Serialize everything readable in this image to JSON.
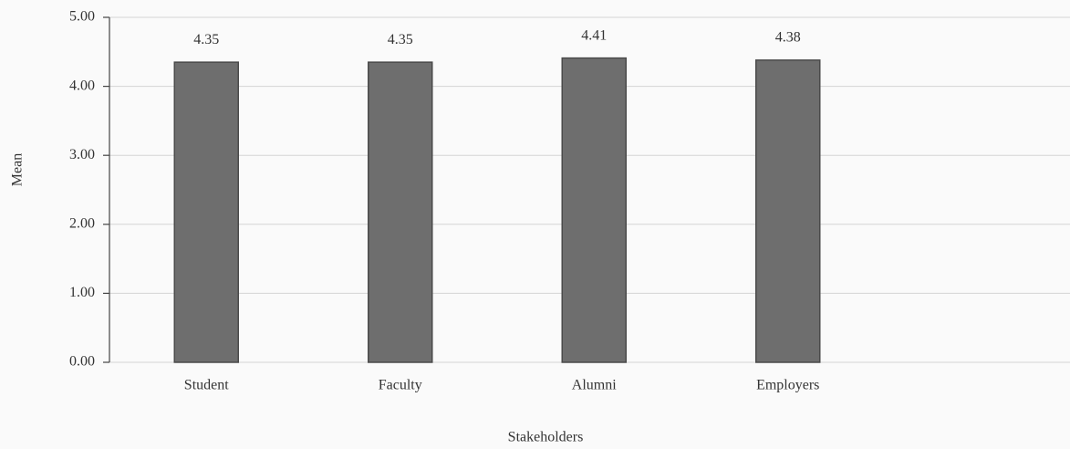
{
  "chart_data": {
    "type": "bar",
    "categories": [
      "Student",
      "Faculty",
      "Alumni",
      "Employers"
    ],
    "values": [
      4.35,
      4.35,
      4.41,
      4.38
    ],
    "color": "#6e6e6e",
    "xlabel": "Stakeholders",
    "ylabel": "Mean",
    "ylim": [
      0,
      5
    ],
    "yticks": [
      {
        "value": 0,
        "label": "0.00"
      },
      {
        "value": 1,
        "label": "1.00"
      },
      {
        "value": 2,
        "label": "2.00"
      },
      {
        "value": 3,
        "label": "3.00"
      },
      {
        "value": 4,
        "label": "4.00"
      },
      {
        "value": 5,
        "label": "5.00"
      }
    ],
    "grid": true
  }
}
